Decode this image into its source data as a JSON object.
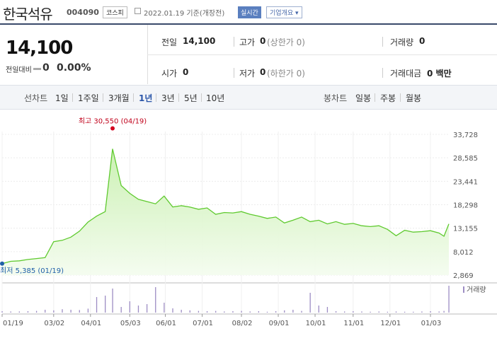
{
  "header": {
    "name": "한국석유",
    "code": "004090",
    "market": "코스피",
    "date_text": "2022.01.19 기준(개장전)",
    "realtime_label": "실시간",
    "company_label": "기업개요 ▾"
  },
  "price": {
    "current": "14,100",
    "change_label": "전일대비",
    "change_value": "0",
    "change_rate": "0.00%"
  },
  "stats": {
    "prev_label": "전일",
    "prev_value": "14,100",
    "high_label": "고가",
    "high_value": "0",
    "high_sub": "(상한가 0)",
    "volume_label": "거래량",
    "volume_value": "0",
    "open_label": "시가",
    "open_value": "0",
    "low_label": "저가",
    "low_value": "0",
    "low_sub": "(하한가 0)",
    "amount_label": "거래대금",
    "amount_value": "0 백만"
  },
  "period_bar": {
    "line_label": "선차트",
    "periods": [
      "1일",
      "1주일",
      "3개월",
      "1년",
      "3년",
      "5년",
      "10년"
    ],
    "selected_period": "1년",
    "candle_label": "봉차트",
    "candles": [
      "일봉",
      "주봉",
      "월봉"
    ]
  },
  "colors": {
    "line": "#5fca2f",
    "fill": "#ddf7cb",
    "volume": "#9d8dc4",
    "high_marker": "#d3001e",
    "low_marker": "#1f5fa8"
  },
  "chart_data": {
    "type": "area",
    "x": [
      "2021-01-19",
      "2021-01-26",
      "2021-02-02",
      "2021-02-09",
      "2021-02-16",
      "2021-02-23",
      "2021-03-02",
      "2021-03-09",
      "2021-03-16",
      "2021-03-23",
      "2021-03-30",
      "2021-04-06",
      "2021-04-13",
      "2021-04-19",
      "2021-04-26",
      "2021-05-03",
      "2021-05-10",
      "2021-05-17",
      "2021-05-24",
      "2021-05-31",
      "2021-06-07",
      "2021-06-14",
      "2021-06-21",
      "2021-06-28",
      "2021-07-05",
      "2021-07-12",
      "2021-07-19",
      "2021-07-26",
      "2021-08-02",
      "2021-08-09",
      "2021-08-16",
      "2021-08-23",
      "2021-08-30",
      "2021-09-06",
      "2021-09-13",
      "2021-09-20",
      "2021-09-27",
      "2021-10-04",
      "2021-10-11",
      "2021-10-18",
      "2021-10-25",
      "2021-11-01",
      "2021-11-08",
      "2021-11-15",
      "2021-11-22",
      "2021-11-29",
      "2021-12-06",
      "2021-12-13",
      "2021-12-20",
      "2021-12-27",
      "2022-01-03",
      "2022-01-10",
      "2022-01-14",
      "2022-01-18"
    ],
    "y": [
      5385,
      5900,
      6000,
      6300,
      6500,
      6700,
      10200,
      10500,
      11200,
      12500,
      14500,
      15800,
      16800,
      30550,
      22500,
      20800,
      19500,
      19000,
      18500,
      20200,
      17800,
      18100,
      17800,
      17300,
      17600,
      16200,
      16600,
      16500,
      16800,
      16200,
      15800,
      15300,
      15600,
      14300,
      14900,
      15600,
      14600,
      14900,
      14100,
      14600,
      14000,
      14200,
      13700,
      13500,
      13700,
      12900,
      11500,
      12700,
      12300,
      12400,
      12600,
      12100,
      11400,
      14100
    ],
    "volume": [
      0.05,
      0.04,
      0.04,
      0.05,
      0.06,
      0.1,
      0.08,
      0.12,
      0.1,
      0.09,
      0.14,
      0.55,
      0.6,
      0.85,
      0.2,
      0.4,
      0.25,
      0.3,
      0.9,
      0.35,
      0.15,
      0.1,
      0.08,
      0.06,
      0.05,
      0.06,
      0.04,
      0.05,
      0.06,
      0.04,
      0.05,
      0.03,
      0.05,
      0.08,
      0.1,
      0.06,
      0.7,
      0.25,
      0.2,
      0.05,
      0.04,
      0.05,
      0.04,
      0.03,
      0.04,
      0.03,
      0.04,
      0.03,
      0.03,
      0.04,
      0.05,
      0.04,
      0.06,
      0.95
    ],
    "xticks": [
      "01/19",
      "03/02",
      "04/01",
      "05/03",
      "06/01",
      "07/01",
      "08/02",
      "09/01",
      "10/01",
      "11/01",
      "12/01",
      "01/03"
    ],
    "xtick_dates": [
      "2021-01-19",
      "2021-03-02",
      "2021-04-01",
      "2021-05-03",
      "2021-06-01",
      "2021-07-01",
      "2021-08-02",
      "2021-09-01",
      "2021-10-01",
      "2021-11-01",
      "2021-12-01",
      "2022-01-03"
    ],
    "yticks": [
      "33,728",
      "28,585",
      "23,441",
      "18,298",
      "13,155",
      "8,012",
      "2,869"
    ],
    "ylim": [
      2869,
      33728
    ],
    "high_label": "최고 30,550 (04/19)",
    "high": {
      "date": "2021-04-19",
      "value": 30550
    },
    "low_label": "최저 5,385 (01/19)",
    "low": {
      "date": "2021-01-19",
      "value": 5385
    },
    "volume_legend": "거래량",
    "grid": true
  }
}
